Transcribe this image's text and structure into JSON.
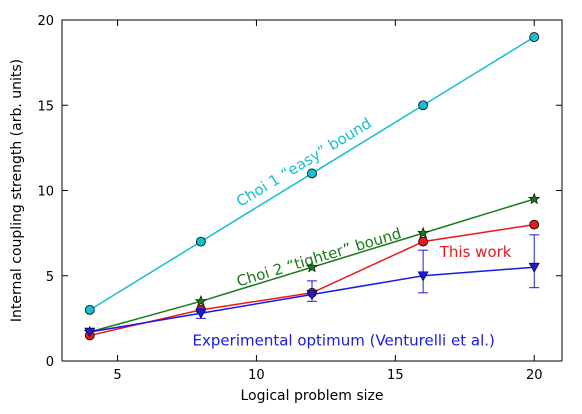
{
  "chart_data": {
    "type": "line",
    "title": "",
    "xlabel": "Logical problem size",
    "ylabel": "Internal coupling strength (arb. units)",
    "xlim": [
      3,
      21
    ],
    "ylim": [
      0,
      20
    ],
    "xticks": [
      5,
      10,
      15,
      20
    ],
    "yticks": [
      0,
      5,
      10,
      15,
      20
    ],
    "grid": false,
    "legend": "none",
    "series": [
      {
        "name": "Choi 1 “easy” bound",
        "color": "#17BECF",
        "marker": "circle",
        "x": [
          4,
          8,
          12,
          16,
          20
        ],
        "y": [
          3,
          7,
          11,
          15,
          19
        ]
      },
      {
        "name": "Choi 2 “tighter” bound",
        "color": "#1A7A1A",
        "marker": "star",
        "x": [
          4,
          8,
          12,
          16,
          20
        ],
        "y": [
          1.7,
          3.5,
          5.5,
          7.5,
          9.5
        ]
      },
      {
        "name": "This work",
        "color": "#E8191D",
        "marker": "circle",
        "x": [
          4,
          8,
          12,
          16,
          20
        ],
        "y": [
          1.5,
          3.0,
          4.0,
          7.0,
          8.0
        ]
      },
      {
        "name": "Experimental optimum (Venturelli et al.)",
        "color": "#1A1AE0",
        "marker": "triangle-down",
        "x": [
          4,
          8,
          12,
          16,
          20
        ],
        "y": [
          1.7,
          2.8,
          3.9,
          5.0,
          5.5
        ],
        "err_low": [
          1.7,
          2.5,
          3.5,
          4.0,
          4.3
        ],
        "err_high": [
          1.7,
          3.1,
          4.7,
          6.5,
          7.4
        ]
      }
    ],
    "annotations": [
      {
        "text": "Choi 1 “easy” bound",
        "series": 0,
        "x": 11.8,
        "y": 11.4,
        "rotate_along": true
      },
      {
        "text": "Choi 2 “tighter” bound",
        "series": 1,
        "x": 12.3,
        "y": 5.8,
        "rotate_along": true
      },
      {
        "text": "This work",
        "series": 2,
        "x": 16.6,
        "y": 6.1,
        "rotate_along": false
      },
      {
        "text": "Experimental optimum (Venturelli et al.)",
        "series": 3,
        "x": 7.7,
        "y": 0.9,
        "rotate_along": false
      }
    ]
  }
}
